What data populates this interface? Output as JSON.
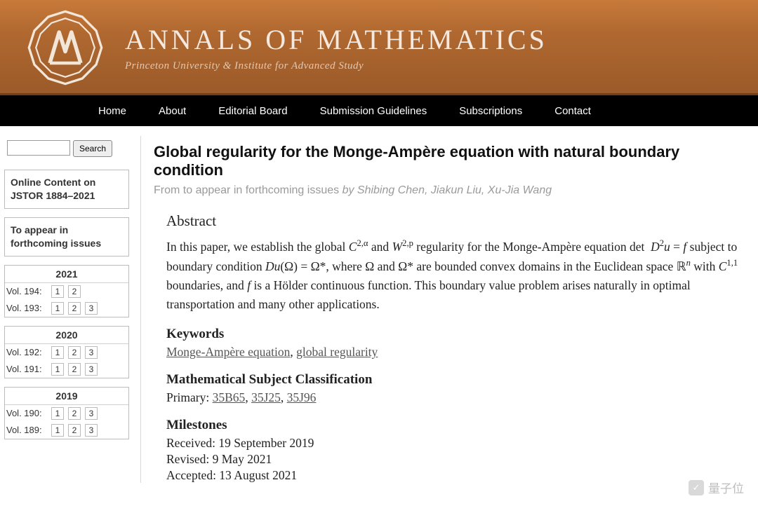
{
  "banner": {
    "journal_title": "ANNALS OF MATHEMATICS",
    "subtitle": "Princeton University & Institute for Advanced Study",
    "bg_gradient": [
      "#c77a3a",
      "#9a5a29"
    ],
    "title_color": "#f4e9df",
    "subtitle_color": "#e0c9b4"
  },
  "nav": {
    "items": [
      "Home",
      "About",
      "Editorial Board",
      "Submission Guidelines",
      "Subscriptions",
      "Contact"
    ],
    "bg_color": "#000000",
    "text_color": "#ffffff"
  },
  "sidebar": {
    "search_button": "Search",
    "jstor_block_l1": "Online Content on",
    "jstor_block_l2": "JSTOR 1884–2021",
    "forthcoming_l1": "To appear in",
    "forthcoming_l2": "forthcoming issues",
    "years": [
      {
        "year": "2021",
        "vols": [
          {
            "label": "Vol. 194:",
            "issues": [
              "1",
              "2"
            ]
          },
          {
            "label": "Vol. 193:",
            "issues": [
              "1",
              "2",
              "3"
            ]
          }
        ]
      },
      {
        "year": "2020",
        "vols": [
          {
            "label": "Vol. 192:",
            "issues": [
              "1",
              "2",
              "3"
            ]
          },
          {
            "label": "Vol. 191:",
            "issues": [
              "1",
              "2",
              "3"
            ]
          }
        ]
      },
      {
        "year": "2019",
        "vols": [
          {
            "label": "Vol. 190:",
            "issues": [
              "1",
              "2",
              "3"
            ]
          },
          {
            "label": "Vol. 189:",
            "issues": [
              "1",
              "2",
              "3"
            ]
          }
        ]
      }
    ]
  },
  "article": {
    "title": "Global regularity for the Monge-Ampère equation with natural boundary condition",
    "from_line_prefix": "From to appear in forthcoming issues ",
    "by_word": "by ",
    "authors": "Shibing Chen, Jiakun Liu, Xu-Jia Wang",
    "abstract_heading": "Abstract",
    "abstract_html": "In this paper, we establish the global <span class='math'>C</span><sup>2,α</sup> and <span class='math'>W</span><sup>2,p</sup> regularity for the Monge-Ampère equation det&nbsp; <span class='math'>D</span><sup>2</sup><span class='math'>u</span> = <span class='math'>f</span> subject to boundary condition <span class='math'>Du</span>(Ω) = Ω*, where Ω and Ω* are bounded convex domains in the Euclidean space ℝ<sup><span class='math'>n</span></sup> with <span class='math'>C</span><sup>1,1</sup> boundaries, and <span class='math'>f</span> is a Hölder continuous function. This boundary value problem arises naturally in optimal transportation and many other applications.",
    "keywords_heading": "Keywords",
    "keywords": [
      "Monge-Ampère equation",
      "global regularity"
    ],
    "msc_heading": "Mathematical Subject Classification",
    "msc_prefix": "Primary: ",
    "msc_codes": [
      "35B65",
      "35J25",
      "35J96"
    ],
    "milestones_heading": "Milestones",
    "milestones": [
      "Received: 19 September 2019",
      "Revised: 9 May 2021",
      "Accepted: 13 August 2021"
    ]
  },
  "watermark": {
    "icon_text": "✓",
    "text": "量子位"
  }
}
